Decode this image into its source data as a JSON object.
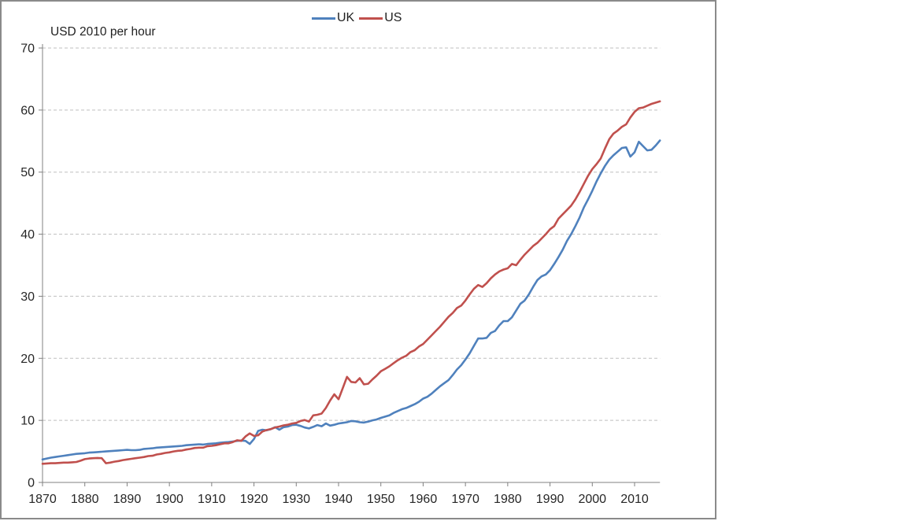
{
  "window": {
    "background": "#ffffff"
  },
  "chart_data": {
    "type": "line",
    "title": "USD 2010 per hour",
    "legend_position": "top-center",
    "grid": "horizontal-dashed",
    "ylim": [
      0,
      70
    ],
    "yticks": [
      0,
      10,
      20,
      30,
      40,
      50,
      60,
      70
    ],
    "xticks": [
      1870,
      1880,
      1890,
      1900,
      1910,
      1920,
      1930,
      1940,
      1950,
      1960,
      1970,
      1980,
      1990,
      2000,
      2010
    ],
    "axis_color": "#808080",
    "grid_color": "#bfbfbf",
    "text_color": "#262626",
    "x": [
      1870,
      1871,
      1872,
      1873,
      1874,
      1875,
      1876,
      1877,
      1878,
      1879,
      1880,
      1881,
      1882,
      1883,
      1884,
      1885,
      1886,
      1887,
      1888,
      1889,
      1890,
      1891,
      1892,
      1893,
      1894,
      1895,
      1896,
      1897,
      1898,
      1899,
      1900,
      1901,
      1902,
      1903,
      1904,
      1905,
      1906,
      1907,
      1908,
      1909,
      1910,
      1911,
      1912,
      1913,
      1914,
      1915,
      1916,
      1917,
      1918,
      1919,
      1920,
      1921,
      1922,
      1923,
      1924,
      1925,
      1926,
      1927,
      1928,
      1929,
      1930,
      1931,
      1932,
      1933,
      1934,
      1935,
      1936,
      1937,
      1938,
      1939,
      1940,
      1941,
      1942,
      1943,
      1944,
      1945,
      1946,
      1947,
      1948,
      1949,
      1950,
      1951,
      1952,
      1953,
      1954,
      1955,
      1956,
      1957,
      1958,
      1959,
      1960,
      1961,
      1962,
      1963,
      1964,
      1965,
      1966,
      1967,
      1968,
      1969,
      1970,
      1971,
      1972,
      1973,
      1974,
      1975,
      1976,
      1977,
      1978,
      1979,
      1980,
      1981,
      1982,
      1983,
      1984,
      1985,
      1986,
      1987,
      1988,
      1989,
      1990,
      1991,
      1992,
      1993,
      1994,
      1995,
      1996,
      1997,
      1998,
      1999,
      2000,
      2001,
      2002,
      2003,
      2004,
      2005,
      2006,
      2007,
      2008,
      2009,
      2010,
      2011,
      2012,
      2013,
      2014,
      2015,
      2016
    ],
    "series": [
      {
        "name": "UK",
        "color": "#4F81BD",
        "values": [
          3.7,
          3.85,
          4.0,
          4.1,
          4.2,
          4.3,
          4.4,
          4.5,
          4.6,
          4.65,
          4.7,
          4.8,
          4.85,
          4.9,
          4.95,
          5.0,
          5.05,
          5.1,
          5.15,
          5.2,
          5.25,
          5.2,
          5.2,
          5.25,
          5.4,
          5.45,
          5.5,
          5.6,
          5.65,
          5.7,
          5.75,
          5.8,
          5.85,
          5.9,
          6.0,
          6.05,
          6.1,
          6.15,
          6.1,
          6.2,
          6.25,
          6.3,
          6.4,
          6.45,
          6.5,
          6.6,
          6.7,
          6.75,
          6.7,
          6.2,
          7.0,
          8.3,
          8.5,
          8.4,
          8.6,
          8.9,
          8.5,
          8.9,
          9.0,
          9.25,
          9.3,
          9.1,
          8.85,
          8.7,
          8.95,
          9.25,
          9.05,
          9.5,
          9.15,
          9.3,
          9.5,
          9.6,
          9.7,
          9.9,
          9.85,
          9.7,
          9.65,
          9.8,
          10.0,
          10.15,
          10.4,
          10.6,
          10.8,
          11.2,
          11.5,
          11.8,
          12.0,
          12.3,
          12.6,
          13.0,
          13.5,
          13.8,
          14.3,
          14.9,
          15.5,
          16.0,
          16.5,
          17.3,
          18.2,
          18.9,
          19.8,
          20.8,
          22.0,
          23.2,
          23.2,
          23.3,
          24.1,
          24.4,
          25.3,
          26.0,
          26.0,
          26.6,
          27.7,
          28.8,
          29.3,
          30.3,
          31.5,
          32.6,
          33.2,
          33.5,
          34.2,
          35.2,
          36.3,
          37.5,
          38.9,
          40.0,
          41.3,
          42.7,
          44.3,
          45.6,
          47.0,
          48.5,
          49.8,
          51.0,
          52.0,
          52.7,
          53.3,
          53.9,
          54.0,
          52.5,
          53.2,
          54.9,
          54.2,
          53.5,
          53.6,
          54.3,
          55.1
        ]
      },
      {
        "name": "US",
        "color": "#C0504D",
        "values": [
          3.0,
          3.05,
          3.1,
          3.1,
          3.15,
          3.2,
          3.2,
          3.25,
          3.3,
          3.5,
          3.75,
          3.85,
          3.9,
          3.95,
          3.9,
          3.1,
          3.2,
          3.35,
          3.45,
          3.6,
          3.7,
          3.8,
          3.9,
          4.0,
          4.1,
          4.25,
          4.3,
          4.5,
          4.6,
          4.75,
          4.85,
          5.0,
          5.1,
          5.15,
          5.3,
          5.4,
          5.55,
          5.6,
          5.6,
          5.85,
          5.9,
          6.0,
          6.15,
          6.3,
          6.3,
          6.5,
          6.8,
          6.7,
          7.4,
          7.9,
          7.5,
          7.6,
          8.2,
          8.45,
          8.6,
          8.85,
          9.0,
          9.2,
          9.3,
          9.5,
          9.6,
          9.9,
          10.05,
          9.8,
          10.8,
          10.9,
          11.1,
          12.0,
          13.2,
          14.2,
          13.4,
          15.2,
          17.0,
          16.2,
          16.1,
          16.8,
          15.8,
          15.9,
          16.6,
          17.2,
          17.9,
          18.3,
          18.7,
          19.2,
          19.7,
          20.1,
          20.4,
          21.0,
          21.3,
          21.9,
          22.3,
          23.0,
          23.7,
          24.4,
          25.1,
          25.9,
          26.7,
          27.3,
          28.1,
          28.5,
          29.3,
          30.3,
          31.2,
          31.8,
          31.5,
          32.1,
          32.9,
          33.5,
          34.0,
          34.3,
          34.5,
          35.2,
          35.0,
          35.9,
          36.7,
          37.4,
          38.1,
          38.6,
          39.3,
          40.0,
          40.8,
          41.3,
          42.5,
          43.2,
          43.9,
          44.6,
          45.6,
          46.8,
          48.1,
          49.4,
          50.5,
          51.3,
          52.2,
          53.8,
          55.3,
          56.2,
          56.7,
          57.3,
          57.7,
          58.8,
          59.7,
          60.3,
          60.4,
          60.7,
          61.0,
          61.2,
          61.4
        ]
      }
    ]
  }
}
